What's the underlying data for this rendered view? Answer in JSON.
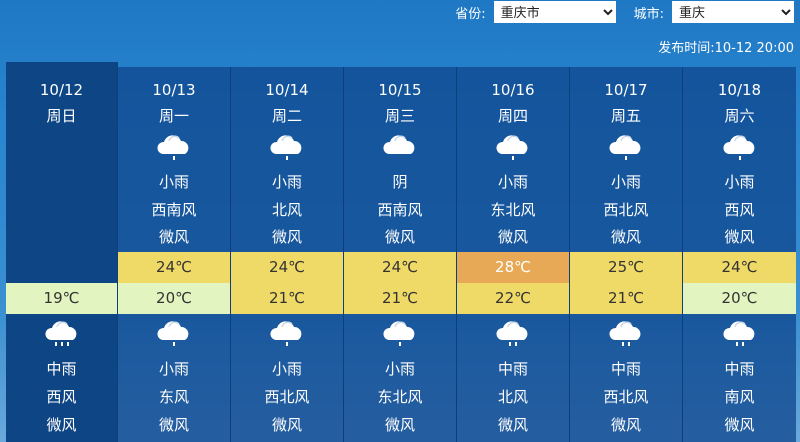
{
  "header": {
    "province_label": "省份:",
    "province_value": "重庆市",
    "city_label": "城市:",
    "city_value": "重庆",
    "publish_label": "发布时间:",
    "publish_time": "10-12 20:00"
  },
  "colors": {
    "high_hot": "#e7a955",
    "high_warm": "#f0da67",
    "low_warm": "#f0da67",
    "low_cool": "#e2f5c0"
  },
  "days": [
    {
      "date": "10/12",
      "weekday": "周日",
      "day": null,
      "high": null,
      "low": "19℃",
      "low_color": "cool",
      "night": {
        "icon": "rain-medium-icon",
        "weather": "中雨",
        "wind_dir": "西风",
        "wind": "微风"
      }
    },
    {
      "date": "10/13",
      "weekday": "周一",
      "day": {
        "icon": "rain-light-icon",
        "weather": "小雨",
        "wind_dir": "西南风",
        "wind": "微风"
      },
      "high": "24℃",
      "high_color": "warm",
      "low": "20℃",
      "low_color": "cool",
      "night": {
        "icon": "rain-light-icon",
        "weather": "小雨",
        "wind_dir": "东风",
        "wind": "微风"
      }
    },
    {
      "date": "10/14",
      "weekday": "周二",
      "day": {
        "icon": "rain-light-icon",
        "weather": "小雨",
        "wind_dir": "北风",
        "wind": "微风"
      },
      "high": "24℃",
      "high_color": "warm",
      "low": "21℃",
      "low_color": "warm",
      "night": {
        "icon": "rain-light-icon",
        "weather": "小雨",
        "wind_dir": "西北风",
        "wind": "微风"
      }
    },
    {
      "date": "10/15",
      "weekday": "周三",
      "day": {
        "icon": "overcast-icon",
        "weather": "阴",
        "wind_dir": "西南风",
        "wind": "微风"
      },
      "high": "24℃",
      "high_color": "warm",
      "low": "21℃",
      "low_color": "warm",
      "night": {
        "icon": "rain-light-icon",
        "weather": "小雨",
        "wind_dir": "东北风",
        "wind": "微风"
      }
    },
    {
      "date": "10/16",
      "weekday": "周四",
      "day": {
        "icon": "rain-light-icon",
        "weather": "小雨",
        "wind_dir": "东北风",
        "wind": "微风"
      },
      "high": "28℃",
      "high_color": "hot",
      "low": "22℃",
      "low_color": "warm",
      "night": {
        "icon": "rain-medium-icon",
        "weather": "中雨",
        "wind_dir": "北风",
        "wind": "微风"
      }
    },
    {
      "date": "10/17",
      "weekday": "周五",
      "day": {
        "icon": "rain-light-icon",
        "weather": "小雨",
        "wind_dir": "西北风",
        "wind": "微风"
      },
      "high": "25℃",
      "high_color": "warm",
      "low": "21℃",
      "low_color": "warm",
      "night": {
        "icon": "rain-medium-icon",
        "weather": "中雨",
        "wind_dir": "西北风",
        "wind": "微风"
      }
    },
    {
      "date": "10/18",
      "weekday": "周六",
      "day": {
        "icon": "rain-light-icon",
        "weather": "小雨",
        "wind_dir": "西风",
        "wind": "微风"
      },
      "high": "24℃",
      "high_color": "warm",
      "low": "20℃",
      "low_color": "cool",
      "night": {
        "icon": "rain-medium-icon",
        "weather": "中雨",
        "wind_dir": "南风",
        "wind": "微风"
      }
    }
  ]
}
